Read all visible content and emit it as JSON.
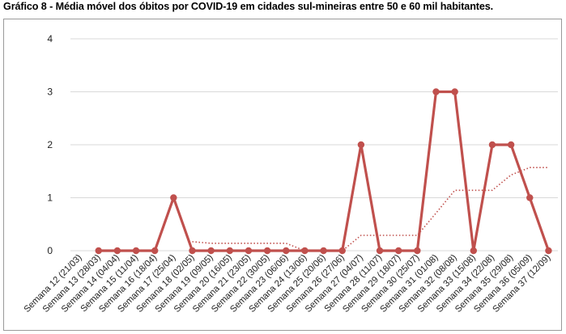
{
  "title": "Gráfico 8 - Média móvel dos óbitos por COVID-19 em cidades sul-mineiras entre 50 e 60 mil habitantes.",
  "colors": {
    "series": "#c0504d",
    "grid": "#d9d9d9",
    "frame": "#9a9a9a"
  },
  "chart_data": {
    "type": "line",
    "title": "Gráfico 8 - Média móvel dos óbitos por COVID-19 em cidades sul-mineiras entre 50 e 60 mil habitantes.",
    "xlabel": "",
    "ylabel": "",
    "ylim": [
      0,
      4
    ],
    "yticks": [
      0,
      1,
      2,
      3,
      4
    ],
    "grid": true,
    "legend": "none",
    "categories": [
      "Semana 12 (21/03)",
      "Semana 13 (28/03)",
      "Semana 14 (04/04)",
      "Semana 15 (11/04)",
      "Semana 16 (18/04)",
      "Semana 17 (25/04)",
      "Semana 18 (02/05)",
      "Semana 19 (09/05)",
      "Semana 20 (16/05)",
      "Semana 21 (23/05)",
      "Semana 22 (30/05)",
      "Semana 23 (06/06)",
      "Semana 24 (13/06)",
      "Semana 25 (20/06)",
      "Semana 26 (27/06)",
      "Semana 27 (04/07)",
      "Semana 28 (11/07)",
      "Semana 29 (18/07)",
      "Semana 30 (25/07)",
      "Semana 31 (01/08)",
      "Semana 32 (08/08)",
      "Semana 33 (15/08)",
      "Semana 34 (22/08)",
      "Semana 35 (29/08)",
      "Semana 36 (05/09)",
      "Semana 37 (12/09)"
    ],
    "series": [
      {
        "style": "solid-markers",
        "values": [
          null,
          0,
          0,
          0,
          0,
          1,
          0,
          0,
          0,
          0,
          0,
          0,
          0,
          0,
          0,
          2,
          0,
          0,
          0,
          3,
          3,
          0,
          2,
          2,
          1,
          0
        ]
      },
      {
        "style": "dotted-trend",
        "values": [
          null,
          null,
          null,
          null,
          null,
          null,
          0.17,
          0.14,
          0.14,
          0.14,
          0.14,
          0.14,
          0,
          0,
          0,
          0.29,
          0.29,
          0.29,
          0.29,
          0.71,
          1.14,
          1.14,
          1.14,
          1.43,
          1.57,
          1.57
        ]
      }
    ]
  }
}
